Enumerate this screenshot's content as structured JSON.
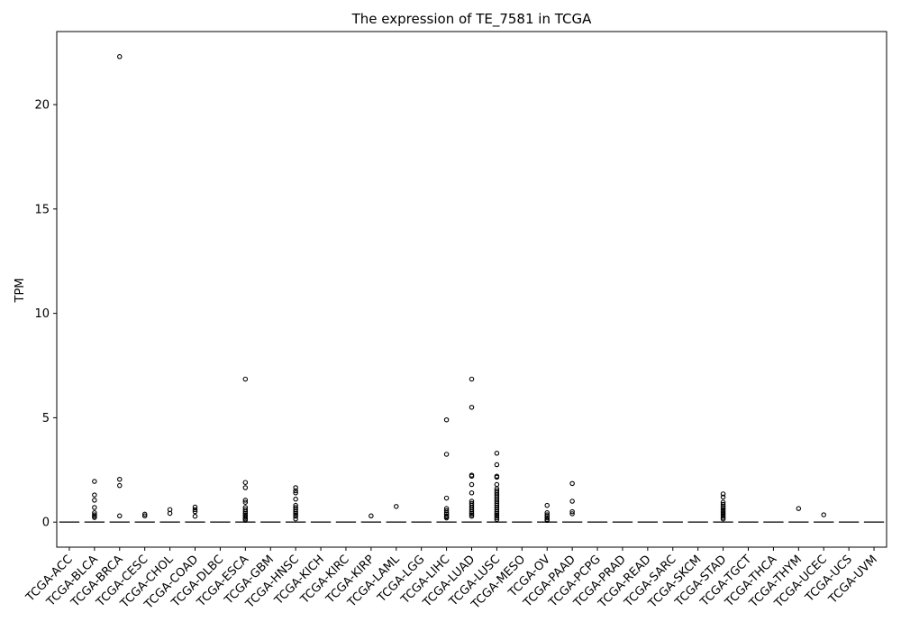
{
  "chart_data": {
    "type": "box",
    "title": "The expression of TE_7581 in TCGA",
    "xlabel": "",
    "ylabel": "TPM",
    "ylim": [
      -1.2,
      23.5
    ],
    "yticks": [
      0,
      5,
      10,
      15,
      20
    ],
    "grid": false,
    "legend": "none",
    "categories": [
      "TCGA-ACC",
      "TCGA-BLCA",
      "TCGA-BRCA",
      "TCGA-CESC",
      "TCGA-CHOL",
      "TCGA-COAD",
      "TCGA-DLBC",
      "TCGA-ESCA",
      "TCGA-GBM",
      "TCGA-HNSC",
      "TCGA-KICH",
      "TCGA-KIRC",
      "TCGA-KIRP",
      "TCGA-LAML",
      "TCGA-LGG",
      "TCGA-LIHC",
      "TCGA-LUAD",
      "TCGA-LUSC",
      "TCGA-MESO",
      "TCGA-OV",
      "TCGA-PAAD",
      "TCGA-PCPG",
      "TCGA-PRAD",
      "TCGA-READ",
      "TCGA-SARC",
      "TCGA-SKCM",
      "TCGA-STAD",
      "TCGA-TGCT",
      "TCGA-THCA",
      "TCGA-THYM",
      "TCGA-UCEC",
      "TCGA-UCS",
      "TCGA-UVM"
    ],
    "medians": [
      0,
      0,
      0,
      0,
      0,
      0,
      0,
      0,
      0,
      0,
      0,
      0,
      0,
      0,
      0,
      0,
      0,
      0,
      0,
      0,
      0,
      0,
      0,
      0,
      0,
      0,
      0,
      0,
      0,
      0,
      0,
      0,
      0
    ],
    "outliers": [
      [],
      [
        1.95,
        1.3,
        1.05,
        0.7,
        0.45,
        0.35,
        0.28,
        0.22
      ],
      [
        22.3,
        2.05,
        1.75,
        0.3
      ],
      [
        0.38,
        0.3
      ],
      [
        0.6,
        0.42
      ],
      [
        0.72,
        0.6,
        0.5,
        0.28
      ],
      [],
      [
        6.85,
        1.9,
        1.65,
        1.05,
        0.95,
        0.7,
        0.6,
        0.5,
        0.42,
        0.35,
        0.28,
        0.22,
        0.15,
        0.1
      ],
      [],
      [
        1.65,
        1.5,
        1.4,
        1.1,
        0.8,
        0.7,
        0.6,
        0.5,
        0.42,
        0.35,
        0.28,
        0.15
      ],
      [],
      [],
      [
        0.3
      ],
      [
        0.75
      ],
      [],
      [
        4.9,
        3.25,
        1.15,
        0.65,
        0.55,
        0.45,
        0.38,
        0.3,
        0.25,
        0.2
      ],
      [
        6.85,
        5.5,
        2.25,
        2.2,
        1.8,
        1.4,
        1.0,
        0.9,
        0.8,
        0.7,
        0.6,
        0.5,
        0.42,
        0.35,
        0.28
      ],
      [
        3.3,
        2.75,
        2.2,
        2.15,
        1.8,
        1.6,
        1.5,
        1.4,
        1.3,
        1.2,
        1.1,
        1.0,
        0.9,
        0.8,
        0.7,
        0.6,
        0.5,
        0.42,
        0.35,
        0.28,
        0.2,
        0.12
      ],
      [],
      [
        0.8,
        0.45,
        0.35,
        0.28,
        0.2,
        0.12,
        0.08
      ],
      [
        1.85,
        1.0,
        0.5,
        0.4
      ],
      [],
      [],
      [],
      [],
      [],
      [
        1.35,
        1.2,
        0.95,
        0.85,
        0.75,
        0.68,
        0.6,
        0.52,
        0.45,
        0.38,
        0.3,
        0.22,
        0.15
      ],
      [],
      [],
      [
        0.65
      ],
      [
        0.35
      ],
      [],
      []
    ]
  }
}
